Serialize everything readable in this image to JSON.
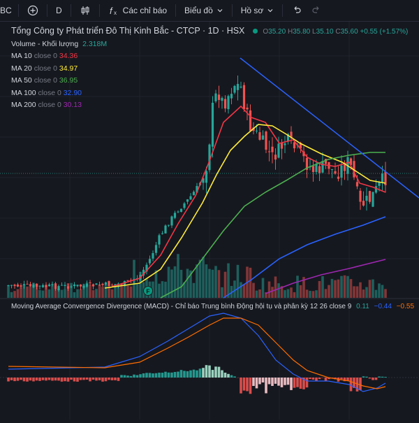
{
  "toolbar": {
    "symbol_fragment": "BC",
    "interval": "D",
    "indicators_label": "Các chỉ báo",
    "chart_type_label": "Biểu đồ",
    "profile_label": "Hồ sơ"
  },
  "legend": {
    "title": "Tổng Công ty Phát triển Đô Thị Kinh Bắc - CTCP · 1D · HSX",
    "ohlc": {
      "o_label": "O",
      "o": "35.20",
      "h_label": "H",
      "h": "35.80",
      "l_label": "L",
      "l": "35.10",
      "c_label": "C",
      "c": "35.60",
      "change": "+0.55 (+1.57%)"
    },
    "volume_label": "Volume - Khối lượng",
    "volume_value": "2.318M",
    "ma": [
      {
        "label": "MA 10 close 0",
        "value": "34.36",
        "color": "#f23645"
      },
      {
        "label": "MA 20 close 0",
        "value": "34.97",
        "color": "#ffeb3b"
      },
      {
        "label": "MA 50 close 0",
        "value": "36.95",
        "color": "#4caf50"
      },
      {
        "label": "MA 100 close 0",
        "value": "32.90",
        "color": "#2962ff"
      },
      {
        "label": "MA 200 close 0",
        "value": "30.13",
        "color": "#9c27b0"
      }
    ]
  },
  "macd_legend": {
    "label": "Moving Average Convergence Divergence (MACD) - Chỉ báo Trung bình Động hội tụ và phân kỳ 12 26 close 9",
    "hist": "0.11",
    "macd": "−0.44",
    "signal": "−0.55"
  },
  "colors": {
    "up": "#26a69a",
    "down": "#ef5350",
    "trendline": "#2962ff",
    "macd_line": "#2962ff",
    "signal_line": "#ff6d00"
  },
  "chart_data": {
    "type": "candlestick",
    "title": "Tổng Công ty Phát triển Đô Thị Kinh Bắc - CTCP · 1D · HSX",
    "last_candle": {
      "open": 35.2,
      "high": 35.8,
      "low": 35.1,
      "close": 35.6
    },
    "ma_last": {
      "MA10": 34.36,
      "MA20": 34.97,
      "MA50": 36.95,
      "MA100": 32.9,
      "MA200": 30.13
    },
    "last_volume": "2.318M",
    "macd_last": {
      "histogram": 0.11,
      "macd": -0.44,
      "signal": -0.55
    }
  }
}
